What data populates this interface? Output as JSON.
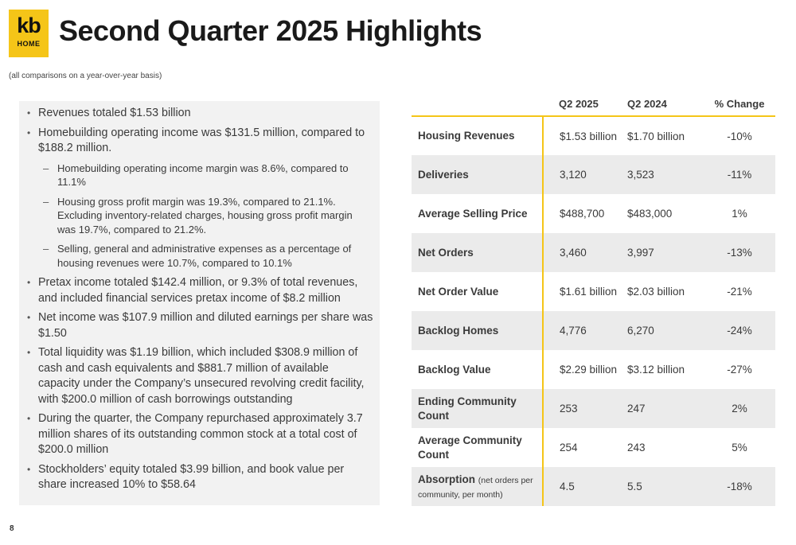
{
  "logo": {
    "line1": "kb",
    "line2": "HOME"
  },
  "title": "Second Quarter 2025 Highlights",
  "subtitle": "(all comparisons on a year-over-year basis)",
  "bullets": [
    {
      "text": "Revenues totaled $1.53 billion",
      "sub": []
    },
    {
      "text": "Homebuilding operating income was $131.5 million, compared to $188.2 million.",
      "sub": [
        "Homebuilding operating income margin was 8.6%, compared to 11.1%",
        "Housing gross profit margin was 19.3%, compared to 21.1%. Excluding inventory-related charges, housing gross profit margin was 19.7%, compared to 21.2%.",
        "Selling, general and administrative expenses as a percentage of housing revenues were 10.7%, compared to 10.1%"
      ]
    },
    {
      "text": "Pretax income totaled $142.4 million, or 9.3% of total revenues, and included financial services pretax income of $8.2 million",
      "sub": []
    },
    {
      "text": "Net income was $107.9 million and diluted earnings per share was $1.50",
      "sub": []
    },
    {
      "text": "Total liquidity was $1.19 billion, which included $308.9 million of cash and cash equivalents and $881.7 million of available capacity under the Company’s unsecured revolving credit facility, with $200.0 million of cash borrowings outstanding",
      "sub": []
    },
    {
      "text": "During the quarter, the Company repurchased approximately 3.7 million shares of its outstanding common stock at a total cost of $200.0 million",
      "sub": []
    },
    {
      "text": "Stockholders’ equity totaled $3.99 billion, and book value per share increased 10% to $58.64",
      "sub": []
    }
  ],
  "table": {
    "headers": [
      "",
      "Q2 2025",
      "Q2 2024",
      "% Change"
    ],
    "rows": [
      {
        "metric": "Housing Revenues",
        "note": "",
        "q2_2025": "$1.53 billion",
        "q2_2024": "$1.70 billion",
        "change": "-10%"
      },
      {
        "metric": "Deliveries",
        "note": "",
        "q2_2025": "3,120",
        "q2_2024": "3,523",
        "change": "-11%"
      },
      {
        "metric": "Average Selling Price",
        "note": "",
        "q2_2025": "$488,700",
        "q2_2024": "$483,000",
        "change": "1%"
      },
      {
        "metric": "Net Orders",
        "note": "",
        "q2_2025": "3,460",
        "q2_2024": "3,997",
        "change": "-13%"
      },
      {
        "metric": "Net Order Value",
        "note": "",
        "q2_2025": "$1.61 billion",
        "q2_2024": "$2.03 billion",
        "change": "-21%"
      },
      {
        "metric": "Backlog Homes",
        "note": "",
        "q2_2025": "4,776",
        "q2_2024": "6,270",
        "change": "-24%"
      },
      {
        "metric": "Backlog Value",
        "note": "",
        "q2_2025": "$2.29 billion",
        "q2_2024": "$3.12 billion",
        "change": "-27%"
      },
      {
        "metric": "Ending Community Count",
        "note": "",
        "q2_2025": "253",
        "q2_2024": "247",
        "change": "2%"
      },
      {
        "metric": "Average Community Count",
        "note": "",
        "q2_2025": "254",
        "q2_2024": "243",
        "change": "5%"
      },
      {
        "metric": "Absorption",
        "note": "(net orders per community, per month)",
        "q2_2025": "4.5",
        "q2_2024": "5.5",
        "change": "-18%"
      }
    ]
  },
  "page_number": "8",
  "colors": {
    "accent": "#f5c518",
    "panel": "#f2f2f2",
    "row_shade": "#ebebeb"
  }
}
